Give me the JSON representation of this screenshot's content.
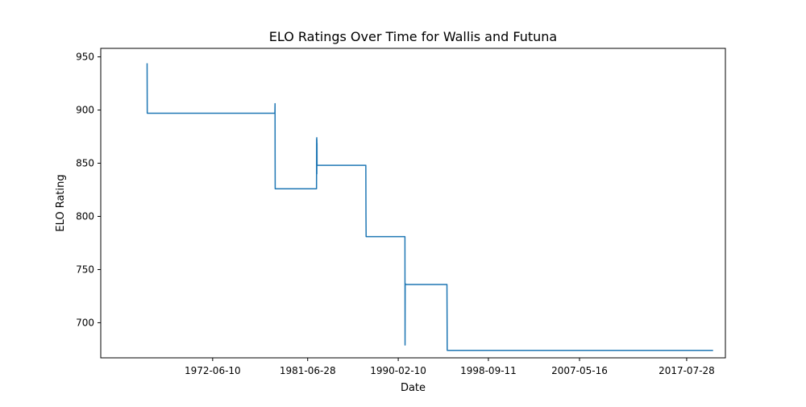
{
  "chart_data": {
    "type": "line",
    "title": "ELO Ratings Over Time for Wallis and Futuna",
    "xlabel": "Date",
    "ylabel": "ELO Rating",
    "x_ticks": [
      "1972-06-10",
      "1981-06-28",
      "1990-02-10",
      "1998-09-11",
      "2007-05-16",
      "2017-07-28"
    ],
    "y_ticks": [
      700,
      750,
      800,
      850,
      900,
      950
    ],
    "xlim": [
      "1961-10-15",
      "2021-04-05"
    ],
    "ylim": [
      667,
      958
    ],
    "grid": false,
    "colors": {
      "line": "#1f77b4",
      "axes": "#000000",
      "background": "#ffffff"
    },
    "series": [
      {
        "x": [
          "1966-03-15",
          "1966-03-20",
          "1966-03-25",
          "1978-05-15",
          "1978-05-20",
          "1978-05-22",
          "1978-05-25",
          "1982-05-01",
          "1982-05-03",
          "1982-05-05",
          "1982-05-08",
          "1982-05-10",
          "1982-05-12",
          "1982-05-14",
          "1982-05-16",
          "1982-05-18",
          "1982-05-20",
          "1987-01-10",
          "1987-01-15",
          "1987-01-20",
          "1990-10-01",
          "1990-10-05",
          "1990-10-10",
          "1990-10-15",
          "1994-10-01",
          "1994-10-10",
          "2020-02-01"
        ],
        "y": [
          944,
          897,
          897,
          897,
          906,
          857,
          826,
          826,
          843,
          873,
          846,
          874,
          840,
          872,
          848,
          869,
          848,
          848,
          801,
          781,
          781,
          679,
          737,
          736,
          736,
          674,
          674
        ]
      }
    ]
  }
}
